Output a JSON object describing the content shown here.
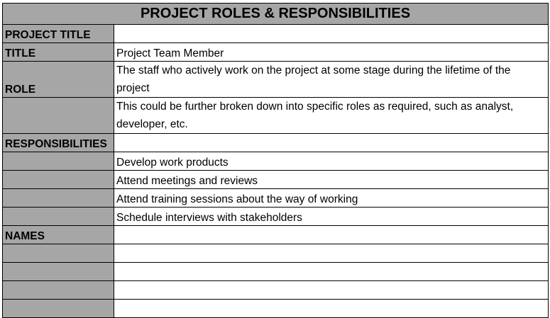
{
  "title": "PROJECT ROLES & RESPONSIBILITIES",
  "rows": [
    {
      "label": "PROJECT TITLE",
      "value": "",
      "tall": false
    },
    {
      "label": "TITLE",
      "value": "Project Team Member",
      "tall": false
    },
    {
      "label": "ROLE",
      "value": "The staff who actively work on the project at some stage during the lifetime of the project",
      "tall": true
    },
    {
      "label": "",
      "value": "This could be further broken down into specific roles as required, such as analyst, developer, etc.",
      "tall": true
    },
    {
      "label": "RESPONSIBILITIES",
      "value": "",
      "tall": false
    },
    {
      "label": "",
      "value": "Develop work products",
      "tall": false
    },
    {
      "label": "",
      "value": "Attend meetings and reviews",
      "tall": false
    },
    {
      "label": "",
      "value": "Attend training sessions about the way of working",
      "tall": false
    },
    {
      "label": "",
      "value": "Schedule interviews with stakeholders",
      "tall": false
    },
    {
      "label": "NAMES",
      "value": "",
      "tall": false
    },
    {
      "label": "",
      "value": "",
      "tall": false
    },
    {
      "label": "",
      "value": "",
      "tall": false
    },
    {
      "label": "",
      "value": "",
      "tall": false
    },
    {
      "label": "",
      "value": "",
      "tall": false
    }
  ],
  "colors": {
    "header_fill": "#a6a6a6",
    "border": "#000000",
    "cell_fill": "#ffffff"
  }
}
